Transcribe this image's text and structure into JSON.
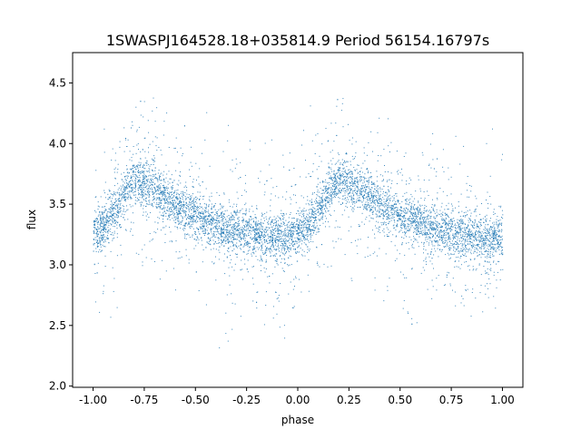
{
  "chart_data": {
    "type": "scatter",
    "title": "1SWASPJ164528.18+035814.9 Period 56154.16797s",
    "xlabel": "phase",
    "ylabel": "flux",
    "xlim": [
      -1.1,
      1.1
    ],
    "ylim": [
      1.99,
      4.75
    ],
    "xticks": [
      "-1.00",
      "-0.75",
      "-0.50",
      "-0.25",
      "0.00",
      "0.25",
      "0.50",
      "0.75",
      "1.00"
    ],
    "yticks": [
      "2.0",
      "2.5",
      "3.0",
      "3.5",
      "4.0",
      "4.5"
    ],
    "grid": false,
    "color": "#1f77b4",
    "binned_curve": {
      "phase": [
        -1.0,
        -0.95,
        -0.9,
        -0.85,
        -0.8,
        -0.75,
        -0.7,
        -0.65,
        -0.6,
        -0.55,
        -0.5,
        -0.45,
        -0.4,
        -0.35,
        -0.3,
        -0.25,
        -0.2,
        -0.15,
        -0.1,
        -0.05,
        0.0,
        0.05,
        0.1,
        0.15,
        0.2,
        0.25,
        0.3,
        0.35,
        0.4,
        0.45,
        0.5,
        0.55,
        0.6,
        0.65,
        0.7,
        0.75,
        0.8,
        0.85,
        0.9,
        0.95,
        1.0
      ],
      "flux": [
        3.25,
        3.33,
        3.45,
        3.6,
        3.7,
        3.68,
        3.63,
        3.57,
        3.5,
        3.45,
        3.4,
        3.36,
        3.33,
        3.3,
        3.28,
        3.26,
        3.25,
        3.24,
        3.23,
        3.22,
        3.25,
        3.33,
        3.45,
        3.6,
        3.7,
        3.68,
        3.63,
        3.57,
        3.5,
        3.45,
        3.4,
        3.36,
        3.33,
        3.3,
        3.28,
        3.26,
        3.25,
        3.24,
        3.23,
        3.22,
        3.25
      ]
    }
  }
}
